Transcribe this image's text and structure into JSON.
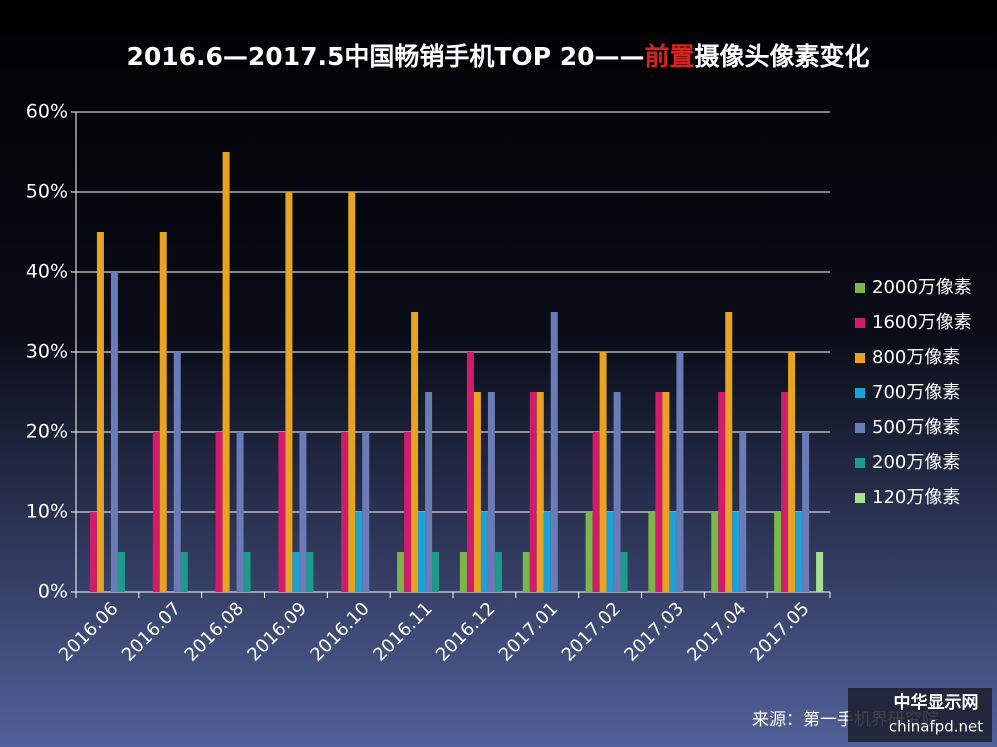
{
  "chart_data": {
    "type": "bar",
    "title": [
      "2016.6—2017.5中国畅销手机TOP 20——",
      "前置",
      "摄像头像素变化"
    ],
    "title_highlight": 1,
    "title_highlight_color": "#e0201b",
    "categories": [
      "2016.06",
      "2016.07",
      "2016.08",
      "2016.09",
      "2016.10",
      "2016.11",
      "2016.12",
      "2017.01",
      "2017.02",
      "2017.03",
      "2017.04",
      "2017.05"
    ],
    "series": [
      {
        "name": "2000万像素",
        "color": "#7ab648",
        "values": [
          0,
          0,
          0,
          0,
          0,
          5,
          5,
          5,
          10,
          10,
          10,
          10
        ]
      },
      {
        "name": "1600万像素",
        "color": "#d01c6a",
        "values": [
          10,
          20,
          20,
          20,
          20,
          20,
          30,
          25,
          20,
          25,
          25,
          25
        ]
      },
      {
        "name": "800万像素",
        "color": "#e8a320",
        "values": [
          45,
          45,
          55,
          50,
          50,
          35,
          25,
          25,
          30,
          25,
          35,
          30
        ]
      },
      {
        "name": "700万像素",
        "color": "#1aa1d6",
        "values": [
          0,
          0,
          0,
          5,
          10,
          10,
          10,
          10,
          10,
          10,
          10,
          10
        ]
      },
      {
        "name": "500万像素",
        "color": "#6b7bb8",
        "values": [
          40,
          30,
          20,
          20,
          20,
          25,
          25,
          35,
          25,
          30,
          20,
          20
        ]
      },
      {
        "name": "200万像素",
        "color": "#1d9b8a",
        "values": [
          5,
          5,
          5,
          5,
          0,
          5,
          5,
          0,
          5,
          0,
          0,
          0
        ]
      },
      {
        "name": "120万像素",
        "color": "#a6e08c",
        "values": [
          0,
          0,
          0,
          0,
          0,
          0,
          0,
          0,
          0,
          0,
          0,
          5
        ]
      }
    ],
    "ylim": [
      0,
      60
    ],
    "yticks": [
      {
        "value": 0,
        "label": "0%"
      },
      {
        "value": 10,
        "label": "10%"
      },
      {
        "value": 20,
        "label": "20%"
      },
      {
        "value": 30,
        "label": "30%"
      },
      {
        "value": 40,
        "label": "40%"
      },
      {
        "value": 50,
        "label": "50%"
      },
      {
        "value": 60,
        "label": "60%"
      }
    ],
    "grid": true,
    "legend": "right",
    "source": "来源：第一手机界研究院",
    "watermark": {
      "name": "中华显示网",
      "url": "chinafpd.net"
    }
  }
}
